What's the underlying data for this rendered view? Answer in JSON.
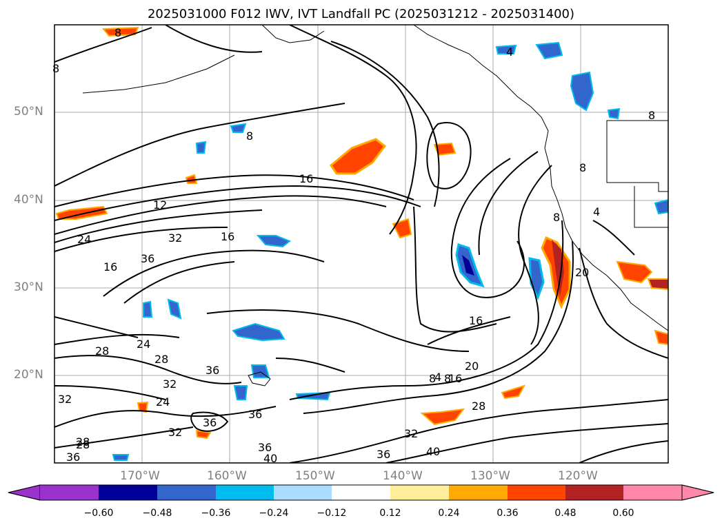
{
  "title": "2025031000 F012 IWV, IVT Landfall PC (2025031212 - 2025031400)",
  "lat_labels": [
    "50°N",
    "40°N",
    "30°N",
    "20°N"
  ],
  "lon_labels": [
    "170°W",
    "160°W",
    "150°W",
    "140°W",
    "130°W",
    "120°W"
  ],
  "contour_labels": [
    "8",
    "8",
    "4",
    "8",
    "8",
    "8",
    "4",
    "12",
    "16",
    "16",
    "24",
    "32",
    "16",
    "36",
    "28",
    "24",
    "28",
    "32",
    "36",
    "32",
    "24",
    "36",
    "32",
    "36",
    "28",
    "16",
    "20",
    "28",
    "32",
    "36",
    "40",
    "36",
    "40",
    "20",
    "8",
    "4",
    "8",
    "8",
    "36",
    "28",
    "16"
  ],
  "colorbar": {
    "colors": [
      "#9933cc",
      "#000099",
      "#3366cc",
      "#00bbee",
      "#aaddff",
      "#ffffff",
      "#ffee99",
      "#ffaa00",
      "#ff4400",
      "#b22222",
      "#ff88aa"
    ],
    "tick_labels": [
      "−0.60",
      "−0.48",
      "−0.36",
      "−0.24",
      "−0.12",
      "0.12",
      "0.24",
      "0.36",
      "0.48",
      "0.60"
    ]
  }
}
